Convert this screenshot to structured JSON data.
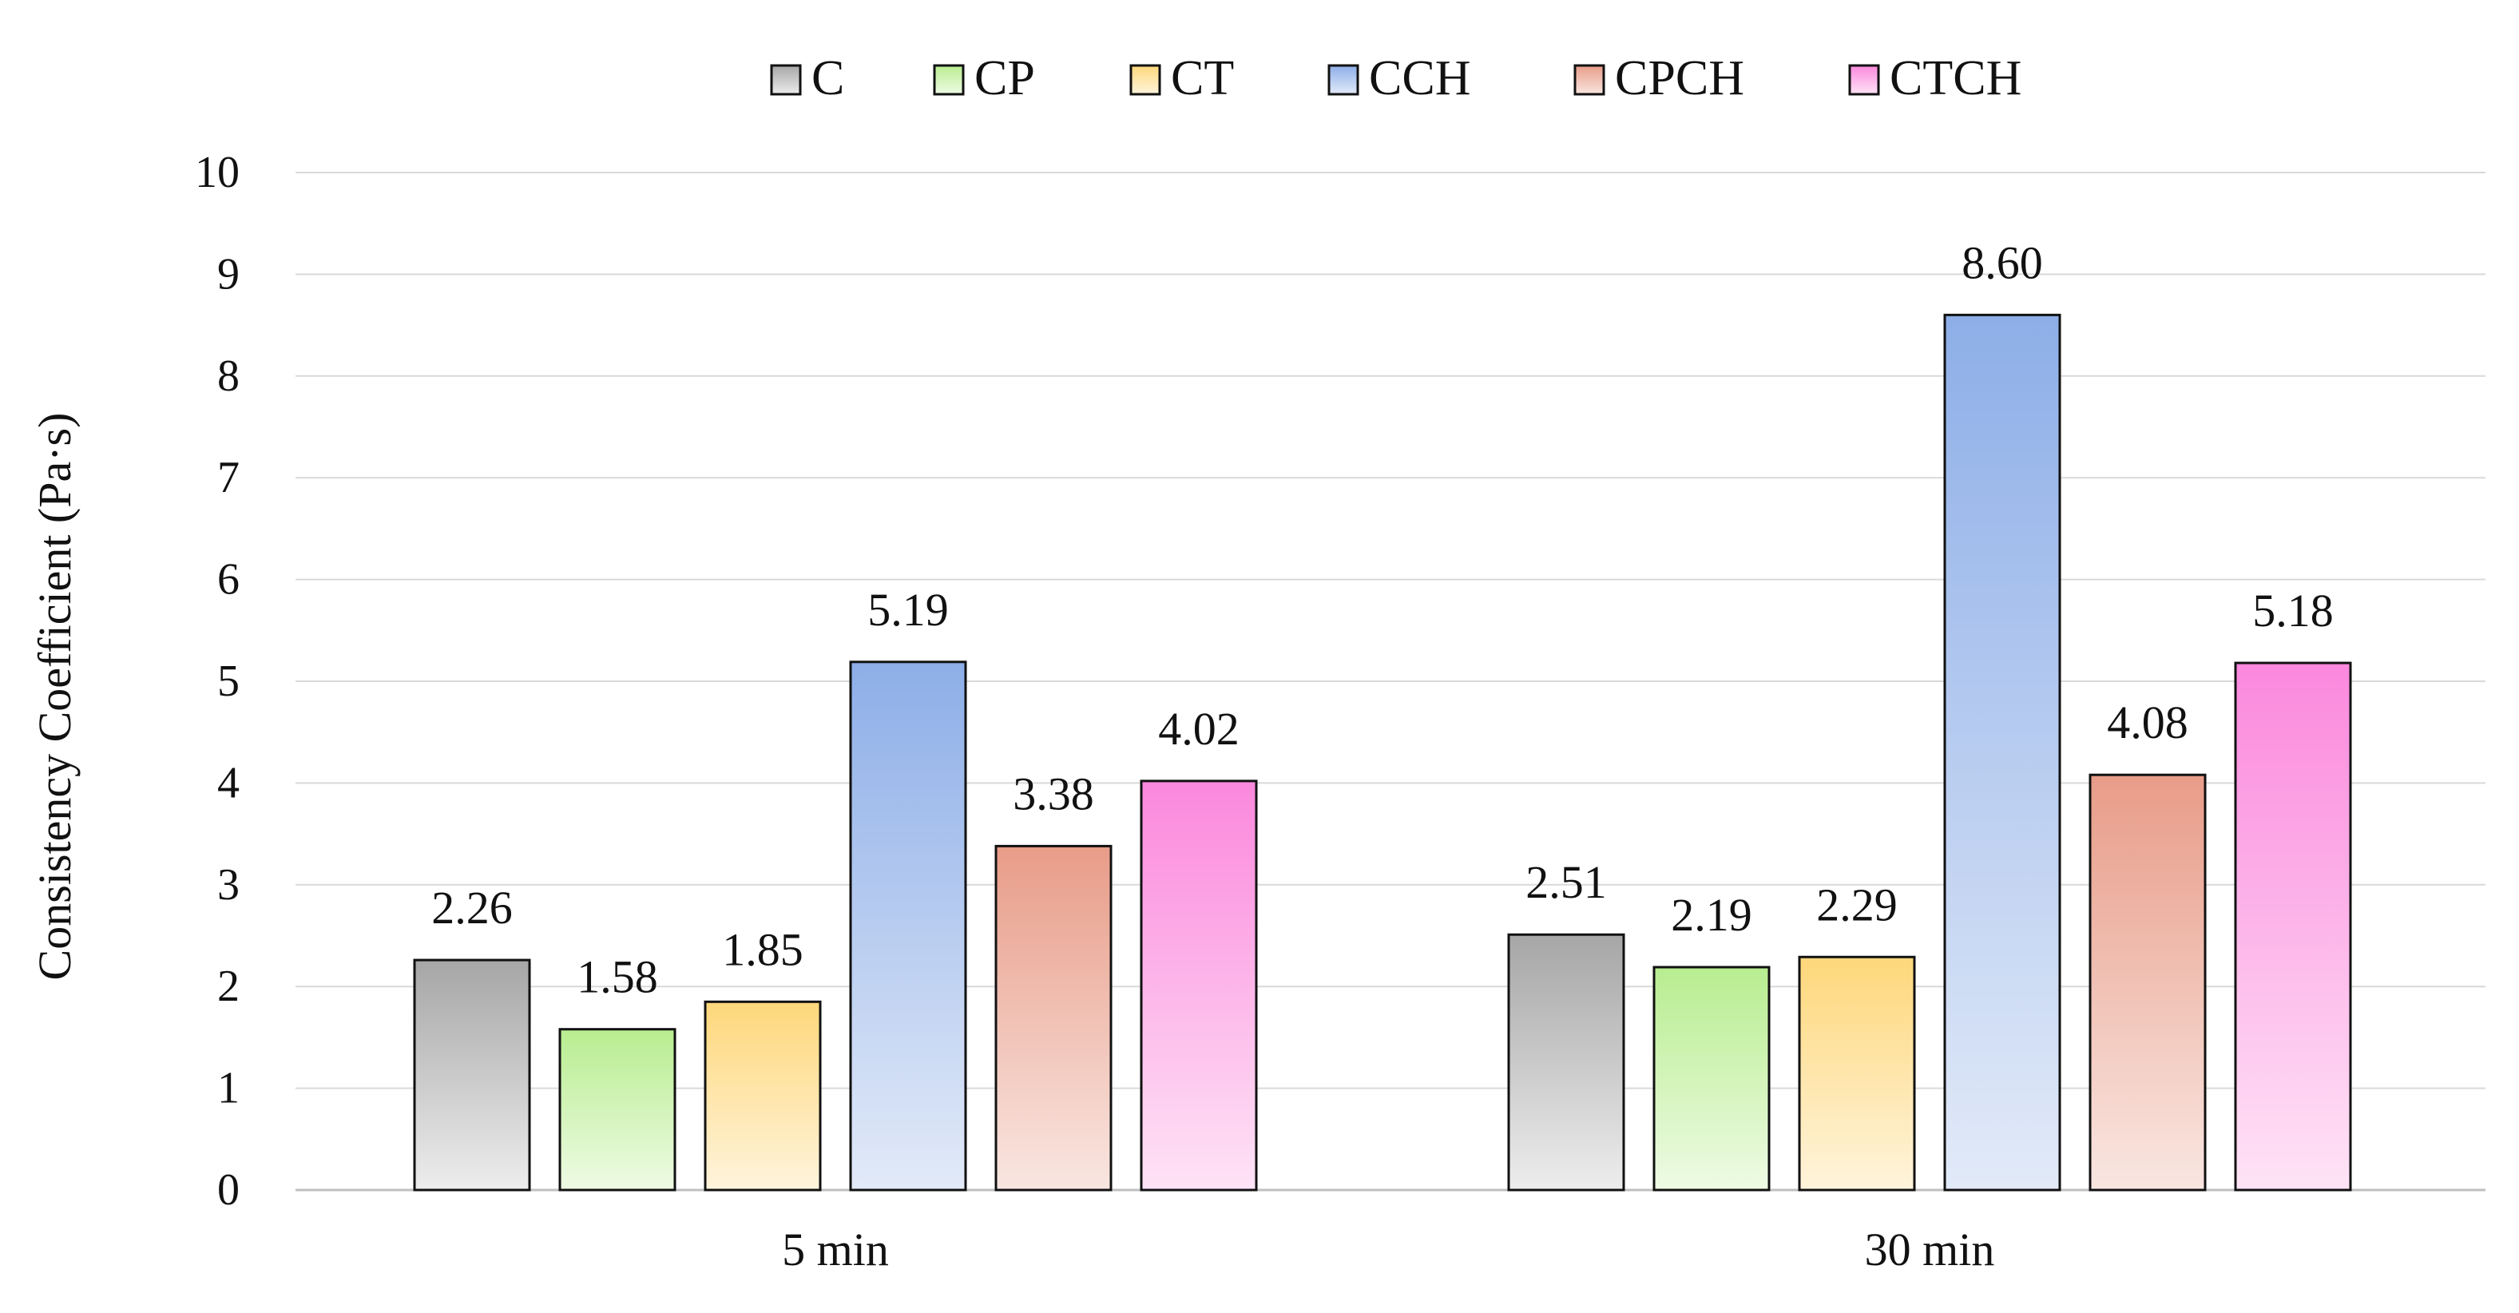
{
  "chart_data": {
    "type": "bar",
    "title": "",
    "xlabel": "",
    "ylabel": "Consistency Coefficient (Pa·s)",
    "ylim": [
      0,
      10
    ],
    "yticks": [
      "0",
      "1",
      "2",
      "3",
      "4",
      "5",
      "6",
      "7",
      "8",
      "9",
      "10"
    ],
    "grid": true,
    "legend_position": "top",
    "categories": [
      "5 min",
      "30 min"
    ],
    "series": [
      {
        "name": "C",
        "values": [
          2.26,
          2.51
        ],
        "labels": [
          "2.26",
          "2.51"
        ],
        "color_top": "#a6a6a6",
        "color_bottom": "#ededed"
      },
      {
        "name": "CP",
        "values": [
          1.58,
          2.19
        ],
        "labels": [
          "1.58",
          "2.19"
        ],
        "color_top": "#b8ed90",
        "color_bottom": "#eefbe4"
      },
      {
        "name": "CT",
        "values": [
          1.85,
          2.29
        ],
        "labels": [
          "1.85",
          "2.29"
        ],
        "color_top": "#fdd77a",
        "color_bottom": "#fff4dc"
      },
      {
        "name": "CCH",
        "values": [
          5.19,
          8.6
        ],
        "labels": [
          "5.19",
          "8.60"
        ],
        "color_top": "#8daee8",
        "color_bottom": "#e2eaf8"
      },
      {
        "name": "CPCH",
        "values": [
          3.38,
          4.08
        ],
        "labels": [
          "3.38",
          "4.08"
        ],
        "color_top": "#e89c88",
        "color_bottom": "#f9e6e1"
      },
      {
        "name": "CTCH",
        "values": [
          4.02,
          5.18
        ],
        "labels": [
          "4.02",
          "5.18"
        ],
        "color_top": "#fb88dd",
        "color_bottom": "#fee3f6"
      }
    ]
  }
}
